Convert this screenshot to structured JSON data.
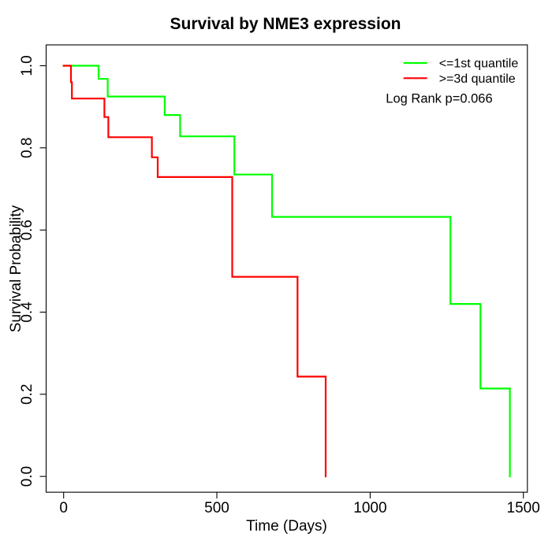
{
  "chart_data": {
    "type": "line",
    "subtype": "kaplan-meier-step",
    "title": "Survival by NME3 expression",
    "xlabel": "Time (Days)",
    "ylabel": "Survival Probability",
    "x_ticks": [
      0,
      500,
      1000,
      1500
    ],
    "x_tick_labels": [
      "0",
      "500",
      "1000",
      "1500"
    ],
    "y_ticks": [
      0.0,
      0.2,
      0.4,
      0.6,
      0.8,
      1.0
    ],
    "y_tick_labels": [
      "0.0",
      "0.2",
      "0.4",
      "0.6",
      "0.8",
      "1.0"
    ],
    "xlim": [
      -57,
      1513
    ],
    "ylim": [
      -0.0384,
      1.0508
    ],
    "grid": false,
    "legend_position": "top-right",
    "annotation": "Log Rank p=0.066",
    "log_rank_p": 0.066,
    "line_color_black": "#000000",
    "series": [
      {
        "id": "green",
        "name": "<=1st quantile",
        "color": "#00ff00",
        "points": [
          [
            0,
            1.0
          ],
          [
            114,
            0.968
          ],
          [
            144,
            0.925
          ],
          [
            330,
            0.88
          ],
          [
            380,
            0.828
          ],
          [
            557,
            0.735
          ],
          [
            680,
            0.632
          ],
          [
            1262,
            0.42
          ],
          [
            1360,
            0.214
          ],
          [
            1456,
            0.0
          ]
        ]
      },
      {
        "id": "red",
        "name": ">=3d quantile",
        "color": "#ff0000",
        "points": [
          [
            0,
            1.0
          ],
          [
            24,
            0.96
          ],
          [
            27,
            0.92
          ],
          [
            133,
            0.875
          ],
          [
            146,
            0.826
          ],
          [
            288,
            0.777
          ],
          [
            307,
            0.729
          ],
          [
            550,
            0.486
          ],
          [
            763,
            0.243
          ],
          [
            855,
            0.0
          ]
        ]
      }
    ]
  }
}
